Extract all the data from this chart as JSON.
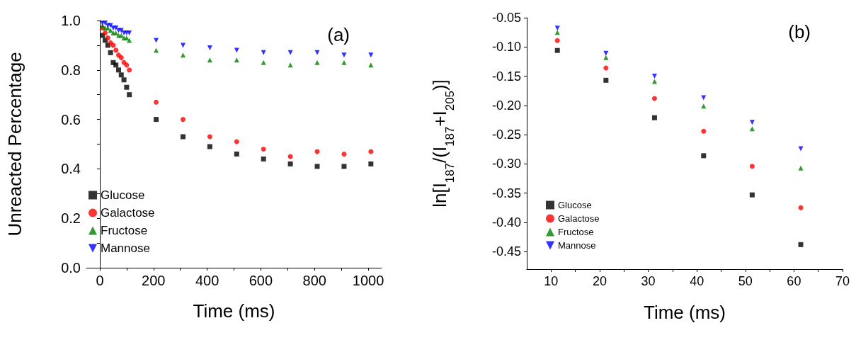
{
  "chart_data": [
    {
      "type": "scatter",
      "title": "(a)",
      "xlabel": "Time (ms)",
      "ylabel": "Unreacted Percentage",
      "xlim": [
        -50,
        1050
      ],
      "xticks": [
        0,
        {
          "value": 100,
          "label": null
        },
        200,
        {
          "value": 300,
          "label": null
        },
        400,
        {
          "value": 500,
          "label": null
        },
        600,
        {
          "value": 700,
          "label": null
        },
        800,
        {
          "value": 900,
          "label": null
        },
        1000
      ],
      "ylim": [
        0,
        1.0
      ],
      "yticks": [
        {
          "value": 0,
          "label": "0.0"
        },
        {
          "value": 0.1,
          "label": null
        },
        0.2,
        {
          "value": 0.3,
          "label": null
        },
        0.4,
        {
          "value": 0.5,
          "label": null
        },
        0.6,
        {
          "value": 0.7,
          "label": null
        },
        0.8,
        {
          "value": 0.9,
          "label": null
        },
        {
          "value": 1.0,
          "label": "1.0"
        }
      ],
      "grid": false,
      "legend": "bottom left",
      "series": [
        {
          "name": "Glucose",
          "color": "#000000",
          "marker": "square",
          "x": [
            10,
            20,
            30,
            40,
            50,
            60,
            70,
            80,
            90,
            100,
            110,
            210,
            310,
            410,
            510,
            610,
            710,
            810,
            910,
            1010
          ],
          "values": [
            0.94,
            0.92,
            0.9,
            0.87,
            0.83,
            0.82,
            0.8,
            0.78,
            0.76,
            0.73,
            0.7,
            0.6,
            0.53,
            0.49,
            0.46,
            0.44,
            0.42,
            0.41,
            0.41,
            0.42
          ]
        },
        {
          "name": "Galactose",
          "color": "#ff0000",
          "marker": "circle",
          "x": [
            10,
            20,
            30,
            40,
            50,
            60,
            70,
            80,
            90,
            100,
            110,
            210,
            310,
            410,
            510,
            610,
            710,
            810,
            910,
            1010
          ],
          "values": [
            0.97,
            0.95,
            0.93,
            0.91,
            0.9,
            0.88,
            0.86,
            0.85,
            0.83,
            0.82,
            0.8,
            0.67,
            0.6,
            0.53,
            0.51,
            0.48,
            0.45,
            0.47,
            0.46,
            0.47
          ]
        },
        {
          "name": "Fructose",
          "color": "#008000",
          "marker": "triangle",
          "x": [
            10,
            20,
            30,
            40,
            50,
            60,
            70,
            80,
            90,
            100,
            110,
            210,
            310,
            410,
            510,
            610,
            710,
            810,
            910,
            1010
          ],
          "values": [
            0.98,
            0.97,
            0.97,
            0.96,
            0.95,
            0.95,
            0.94,
            0.94,
            0.93,
            0.93,
            0.92,
            0.88,
            0.86,
            0.84,
            0.84,
            0.83,
            0.82,
            0.83,
            0.83,
            0.82
          ]
        },
        {
          "name": "Mannose",
          "color": "#0000ff",
          "marker": "triangle-down",
          "x": [
            10,
            20,
            30,
            40,
            50,
            60,
            70,
            80,
            90,
            100,
            110,
            210,
            310,
            410,
            510,
            610,
            710,
            810,
            910,
            1010
          ],
          "values": [
            0.99,
            0.99,
            0.98,
            0.98,
            0.97,
            0.97,
            0.96,
            0.96,
            0.95,
            0.95,
            0.95,
            0.92,
            0.9,
            0.89,
            0.88,
            0.87,
            0.87,
            0.87,
            0.86,
            0.86
          ]
        }
      ]
    },
    {
      "type": "scatter",
      "title": "(b)",
      "xlabel": "Time (ms)",
      "ylabel": "ln[I$_{187}$/(I$_{187}$+I$_{205}$)]",
      "xlim": [
        5,
        70
      ],
      "xticks": [
        10,
        {
          "value": 15,
          "label": null
        },
        20,
        {
          "value": 25,
          "label": null
        },
        30,
        {
          "value": 35,
          "label": null
        },
        40,
        {
          "value": 45,
          "label": null
        },
        50,
        {
          "value": 55,
          "label": null
        },
        60,
        {
          "value": 65,
          "label": null
        },
        70
      ],
      "ylim": [
        -0.48,
        -0.05
      ],
      "yticks": [
        {
          "value": -0.45,
          "label": "-0.45"
        },
        {
          "value": -0.4,
          "label": "-0.40"
        },
        {
          "value": -0.35,
          "label": "-0.35"
        },
        {
          "value": -0.3,
          "label": "-0.30"
        },
        {
          "value": -0.25,
          "label": "-0.25"
        },
        {
          "value": -0.2,
          "label": "-0.20"
        },
        {
          "value": -0.15,
          "label": "-0.15"
        },
        {
          "value": -0.1,
          "label": "-0.10"
        },
        {
          "value": -0.05,
          "label": "-0.05"
        }
      ],
      "grid": false,
      "legend": "bottom left",
      "series": [
        {
          "name": "Glucose",
          "color": "#000000",
          "marker": "square",
          "x": [
            11.3,
            21.3,
            31.3,
            41.4,
            51.4,
            61.4
          ],
          "values": [
            -0.106,
            -0.157,
            -0.221,
            -0.286,
            -0.353,
            -0.438
          ]
        },
        {
          "name": "Galactose",
          "color": "#ff0000",
          "marker": "circle",
          "x": [
            11.3,
            21.3,
            31.3,
            41.4,
            51.4,
            61.4
          ],
          "values": [
            -0.089,
            -0.136,
            -0.188,
            -0.244,
            -0.304,
            -0.375
          ]
        },
        {
          "name": "Fructose",
          "color": "#008000",
          "marker": "triangle",
          "x": [
            11.3,
            21.3,
            31.3,
            41.4,
            51.4,
            61.4
          ],
          "values": [
            -0.075,
            -0.118,
            -0.159,
            -0.201,
            -0.24,
            -0.307
          ]
        },
        {
          "name": "Mannose",
          "color": "#0000ff",
          "marker": "triangle-down",
          "x": [
            11.3,
            21.3,
            31.3,
            41.4,
            51.4,
            61.4
          ],
          "values": [
            -0.068,
            -0.111,
            -0.15,
            -0.187,
            -0.229,
            -0.274
          ]
        }
      ]
    }
  ]
}
